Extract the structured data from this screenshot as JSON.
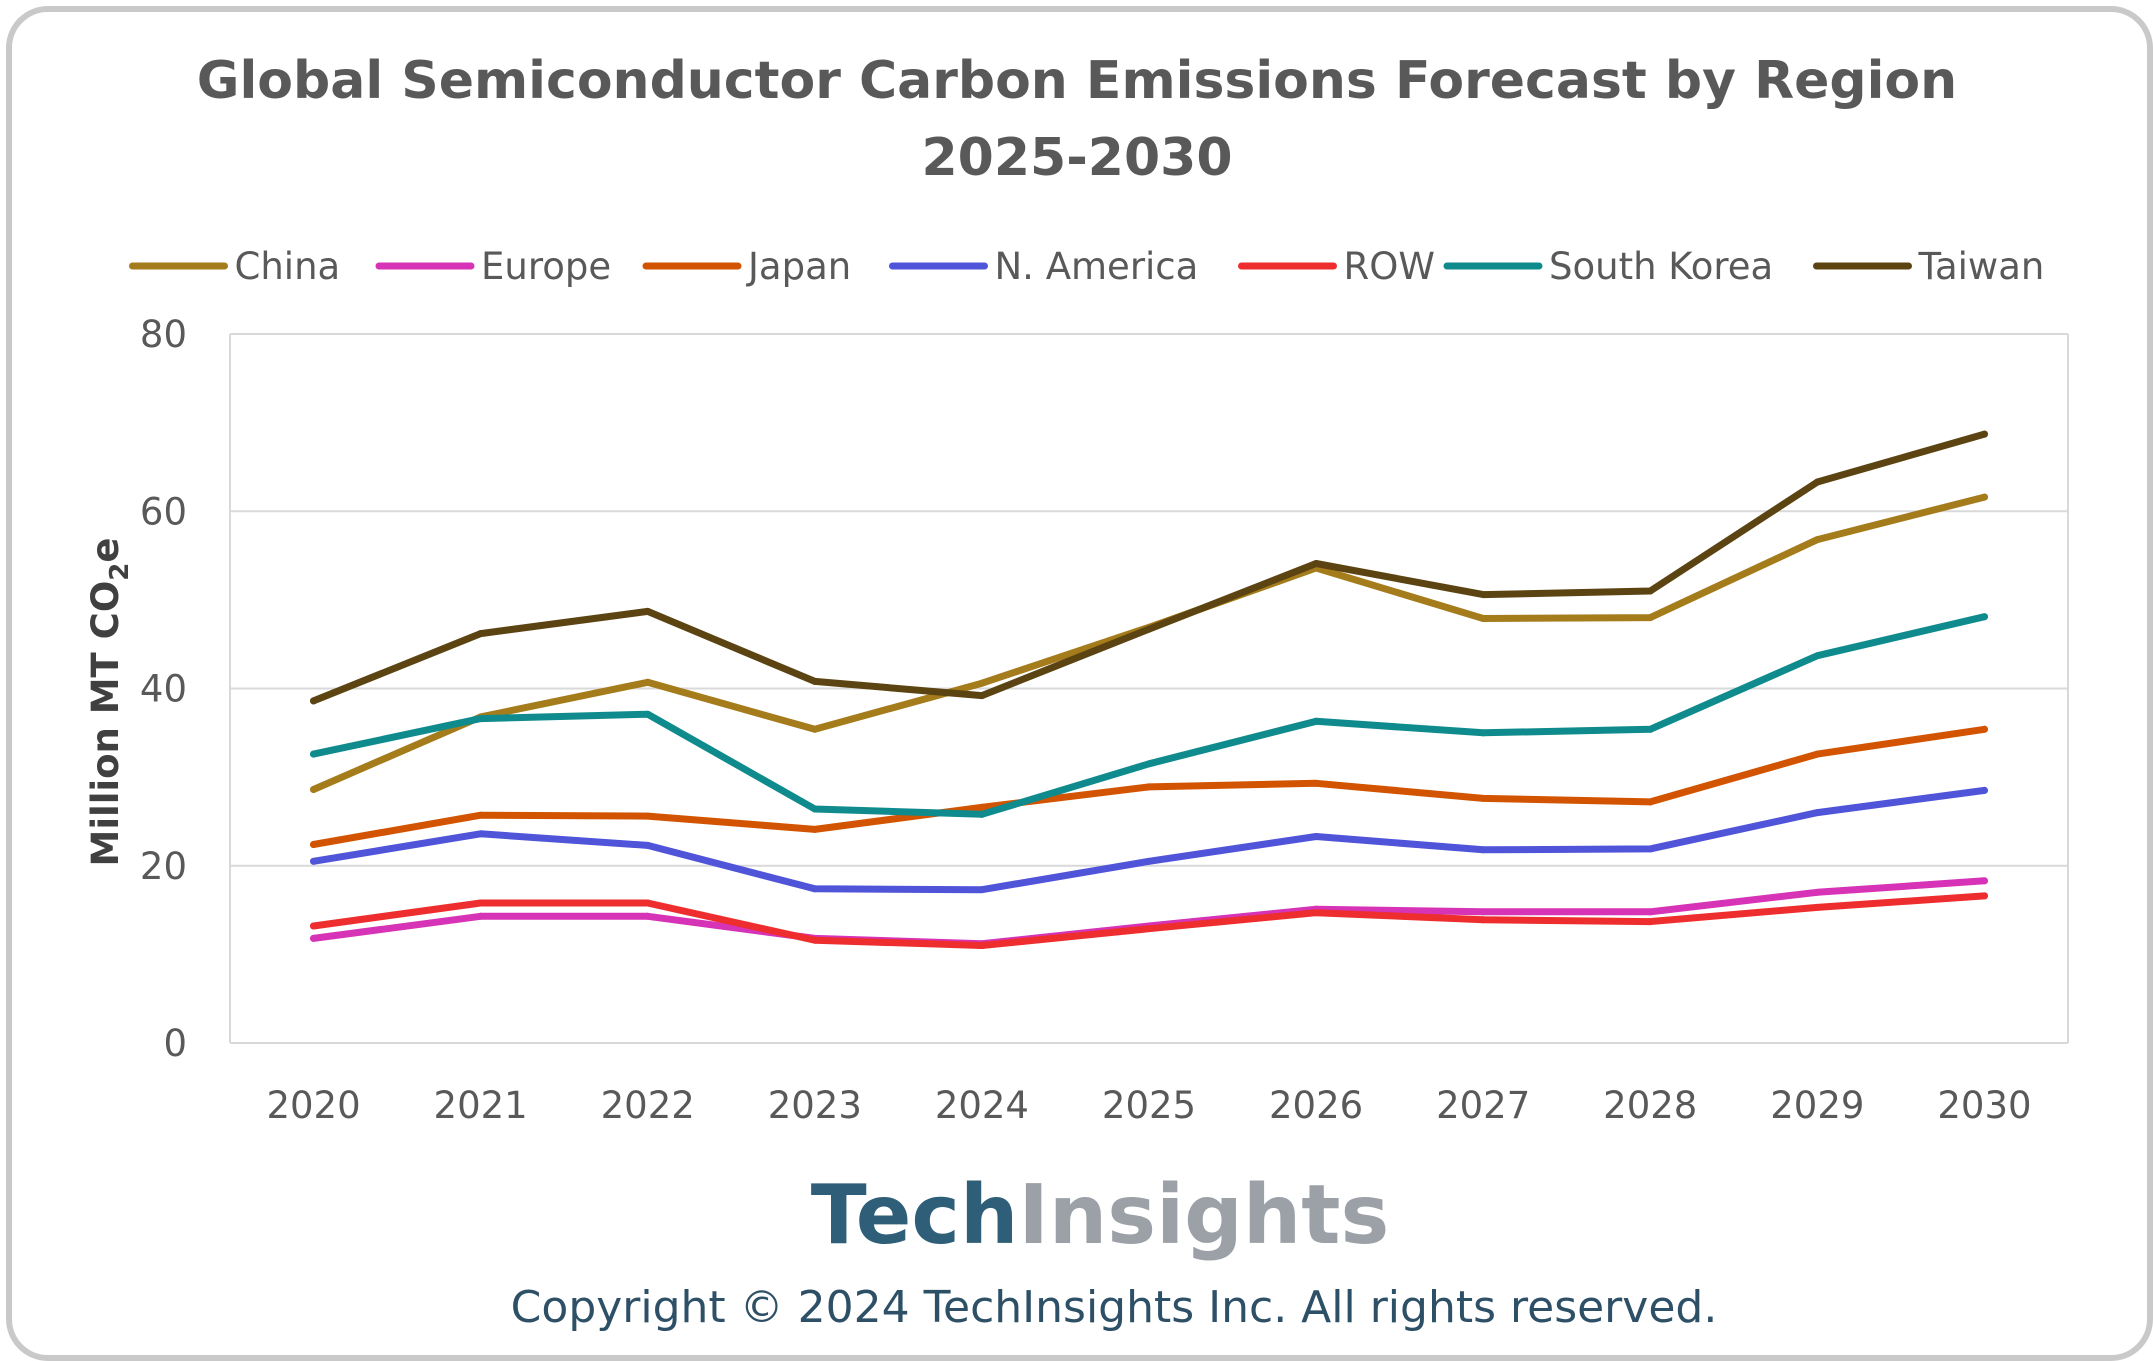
{
  "chart_data": {
    "type": "line",
    "title": "Global Semiconductor Carbon Emissions Forecast by Region",
    "subtitle": "2025-2030",
    "xlabel": "",
    "ylabel": "Million MT CO",
    "ylabel_subscript": "2",
    "ylabel_suffix": "e",
    "categories": [
      "2020",
      "2021",
      "2022",
      "2023",
      "2024",
      "2025",
      "2026",
      "2027",
      "2028",
      "2029",
      "2030"
    ],
    "ylim": [
      0,
      80
    ],
    "yticks": [
      0,
      20,
      40,
      60,
      80
    ],
    "ytick_labels": [
      "0",
      "20",
      "40",
      "60",
      "80"
    ],
    "grid": true,
    "legend_position": "top",
    "series": [
      {
        "name": "China",
        "color": "#a57c1b",
        "values": [
          28.6,
          36.8,
          40.7,
          35.4,
          40.6,
          46.9,
          53.6,
          47.9,
          48.0,
          56.8,
          61.6
        ]
      },
      {
        "name": "Europe",
        "color": "#d633b6",
        "values": [
          11.8,
          14.3,
          14.3,
          11.8,
          11.2,
          13.2,
          15.1,
          14.8,
          14.8,
          17.0,
          18.3
        ]
      },
      {
        "name": "Japan",
        "color": "#d35400",
        "values": [
          22.4,
          25.7,
          25.6,
          24.1,
          26.6,
          28.9,
          29.3,
          27.6,
          27.2,
          32.6,
          35.4
        ]
      },
      {
        "name": "N. America",
        "color": "#4f54d8",
        "values": [
          20.5,
          23.6,
          22.3,
          17.4,
          17.3,
          20.5,
          23.3,
          21.8,
          21.9,
          26.0,
          28.5
        ]
      },
      {
        "name": "ROW",
        "color": "#ee2e2e",
        "values": [
          13.2,
          15.8,
          15.8,
          11.6,
          11.0,
          12.9,
          14.7,
          13.9,
          13.7,
          15.3,
          16.6
        ]
      },
      {
        "name": "South Korea",
        "color": "#0f8b8d",
        "values": [
          32.6,
          36.6,
          37.1,
          26.4,
          25.8,
          31.5,
          36.3,
          35.0,
          35.4,
          43.7,
          48.1
        ]
      },
      {
        "name": "Taiwan",
        "color": "#5c4412",
        "values": [
          38.6,
          46.2,
          48.7,
          40.8,
          39.2,
          46.7,
          54.1,
          50.6,
          51.0,
          63.3,
          68.7
        ]
      }
    ]
  },
  "branding": {
    "logo_part1": "Tech",
    "logo_part2": "Insights",
    "logo_color_1": "#2e5e78",
    "logo_color_2": "#9ba1a6",
    "copyright": "Copyright © 2024 TechInsights Inc.  All rights reserved."
  }
}
